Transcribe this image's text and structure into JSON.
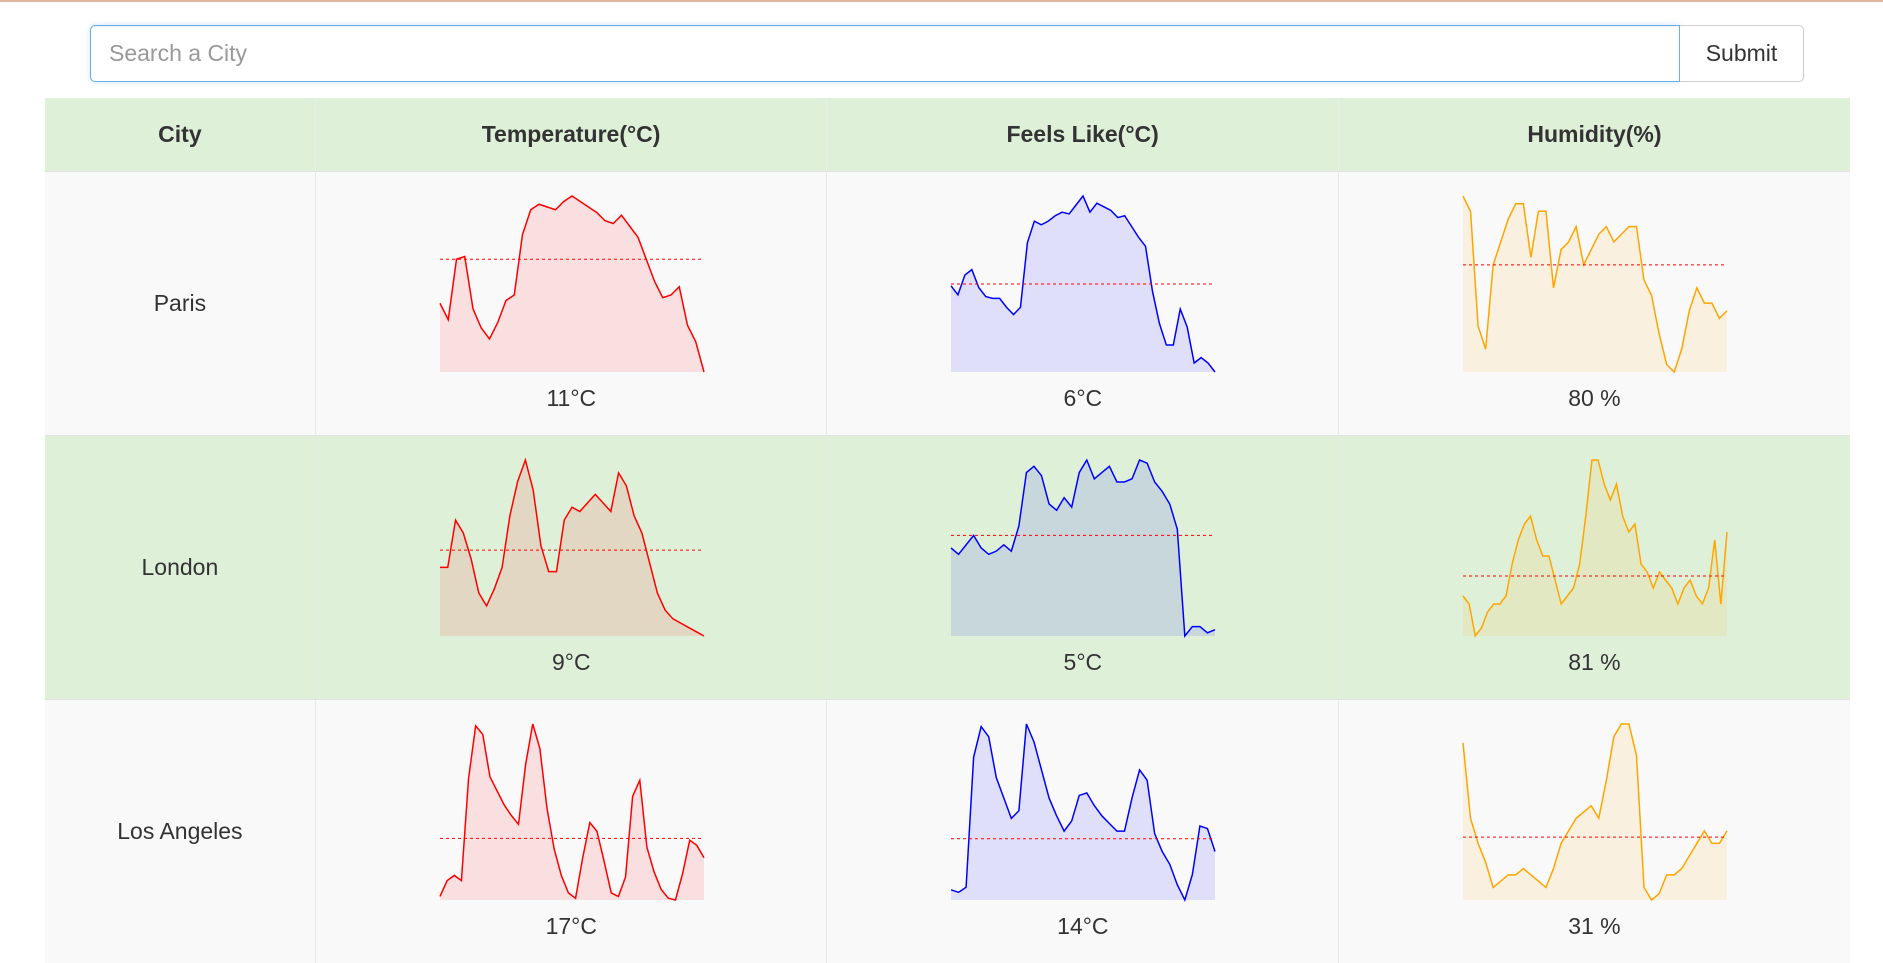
{
  "search": {
    "placeholder": "Search a City",
    "value": "",
    "submit_label": "Submit"
  },
  "table": {
    "headers": [
      "City",
      "Temperature(°C)",
      "Feels Like(°C)",
      "Humidity(%)"
    ]
  },
  "colors": {
    "temperature": "#ff0000",
    "temperature_fill": "rgba(255,0,0,0.10)",
    "feels_like": "#0000ff",
    "feels_like_fill": "rgba(0,0,255,0.10)",
    "humidity": "#ffa500",
    "humidity_fill": "rgba(255,165,0,0.10)",
    "average_line": "#ff0000",
    "header_bg": "#dff0d8",
    "row_odd_bg": "#f9f9f9",
    "row_even_bg": "#dff0d8"
  },
  "rows": [
    {
      "city": "Paris",
      "temperature": {
        "label": "11°C",
        "series": [
          9.0,
          8.4,
          10.6,
          10.7,
          8.8,
          8.1,
          7.7,
          8.3,
          9.1,
          9.3,
          11.5,
          12.4,
          12.6,
          12.5,
          12.4,
          12.7,
          12.9,
          12.7,
          12.5,
          12.3,
          12.0,
          11.9,
          12.2,
          11.8,
          11.4,
          10.6,
          9.8,
          9.2,
          9.3,
          9.6,
          8.2,
          7.6,
          6.5
        ],
        "average": 10.6
      },
      "feels_like": {
        "label": "6°C",
        "series": [
          7.0,
          6.5,
          7.6,
          7.9,
          6.9,
          6.4,
          6.3,
          6.3,
          5.8,
          5.4,
          5.8,
          9.4,
          10.6,
          10.4,
          10.6,
          10.9,
          11.1,
          11.0,
          11.5,
          12.0,
          11.1,
          11.6,
          11.4,
          11.2,
          10.8,
          10.9,
          10.3,
          9.7,
          9.2,
          6.7,
          4.9,
          3.7,
          3.7,
          5.7,
          4.7,
          2.7,
          3.0,
          2.7,
          2.2
        ],
        "average": 7.1
      },
      "humidity": {
        "label": "80 %",
        "series": [
          90,
          88,
          73,
          70,
          81,
          84,
          87,
          89,
          89,
          82,
          88,
          88,
          78,
          83,
          84,
          86,
          81,
          83,
          85,
          86,
          84,
          85,
          86,
          86,
          79,
          77,
          72,
          68,
          67,
          70,
          75,
          78,
          76,
          76,
          74,
          75
        ],
        "average": 81
      }
    },
    {
      "city": "London",
      "temperature": {
        "label": "9°C",
        "series": [
          7.4,
          7.4,
          8.5,
          8.2,
          7.6,
          6.8,
          6.5,
          6.9,
          7.4,
          8.6,
          9.4,
          9.9,
          9.2,
          7.9,
          7.3,
          7.3,
          8.5,
          8.8,
          8.7,
          8.9,
          9.1,
          8.9,
          8.7,
          9.6,
          9.3,
          8.6,
          8.2,
          7.5,
          6.8,
          6.4,
          6.2,
          6.1,
          6.0,
          5.9,
          5.8
        ],
        "average": 7.8
      },
      "feels_like": {
        "label": "5°C",
        "series": [
          5.6,
          5.4,
          5.7,
          6.0,
          5.6,
          5.4,
          5.5,
          5.7,
          5.5,
          6.3,
          8.0,
          8.2,
          7.9,
          7.0,
          6.8,
          7.2,
          6.9,
          8.0,
          8.4,
          7.8,
          8.0,
          8.2,
          7.7,
          7.7,
          7.8,
          8.4,
          8.3,
          7.7,
          7.4,
          7.0,
          6.2,
          2.8,
          3.1,
          3.1,
          2.9,
          3.0
        ],
        "average": 6.0
      },
      "humidity": {
        "label": "81 %",
        "series": [
          79,
          78,
          74,
          75,
          77,
          78,
          78,
          79,
          83,
          86,
          88,
          89,
          86,
          84,
          84,
          81,
          78,
          79,
          80,
          83,
          89,
          96,
          96,
          93,
          91,
          93,
          89,
          87,
          88,
          83,
          82,
          80,
          82,
          81,
          80,
          78,
          80,
          81,
          79,
          78,
          80,
          86,
          78,
          87
        ],
        "average": 81.5
      }
    },
    {
      "city": "Los Angeles",
      "temperature": {
        "label": "17°C",
        "series": [
          13.4,
          14.3,
          14.6,
          14.3,
          20.1,
          23.1,
          22.6,
          20.2,
          19.4,
          18.6,
          18.0,
          17.5,
          20.9,
          23.2,
          21.8,
          18.4,
          16.1,
          14.6,
          13.6,
          13.3,
          15.6,
          17.6,
          17.1,
          15.4,
          13.6,
          13.4,
          14.5,
          19.1,
          20.0,
          16.2,
          14.8,
          13.8,
          13.3,
          13.2,
          14.7,
          16.6,
          16.3,
          15.6
        ],
        "average": 16.7
      },
      "feels_like": {
        "label": "14°C",
        "series": [
          13.0,
          12.9,
          13.1,
          18.2,
          19.4,
          19.0,
          17.4,
          16.6,
          15.8,
          16.1,
          19.5,
          18.8,
          17.7,
          16.6,
          15.9,
          15.3,
          15.7,
          16.7,
          16.8,
          16.3,
          15.9,
          15.6,
          15.3,
          15.3,
          16.6,
          17.7,
          17.3,
          15.2,
          14.5,
          14.0,
          13.2,
          12.6,
          13.6,
          15.5,
          15.4,
          14.5
        ],
        "average": 15.0
      },
      "humidity": {
        "label": "31 %",
        "series": [
          43,
          31,
          27,
          24,
          20,
          21,
          22,
          22,
          23,
          22,
          21,
          20,
          23,
          27,
          29,
          31,
          32,
          33,
          31,
          37,
          44,
          46,
          46,
          41,
          20,
          18,
          19,
          22,
          22,
          23,
          25,
          27,
          29,
          27,
          27,
          29
        ],
        "average": 28
      }
    }
  ]
}
